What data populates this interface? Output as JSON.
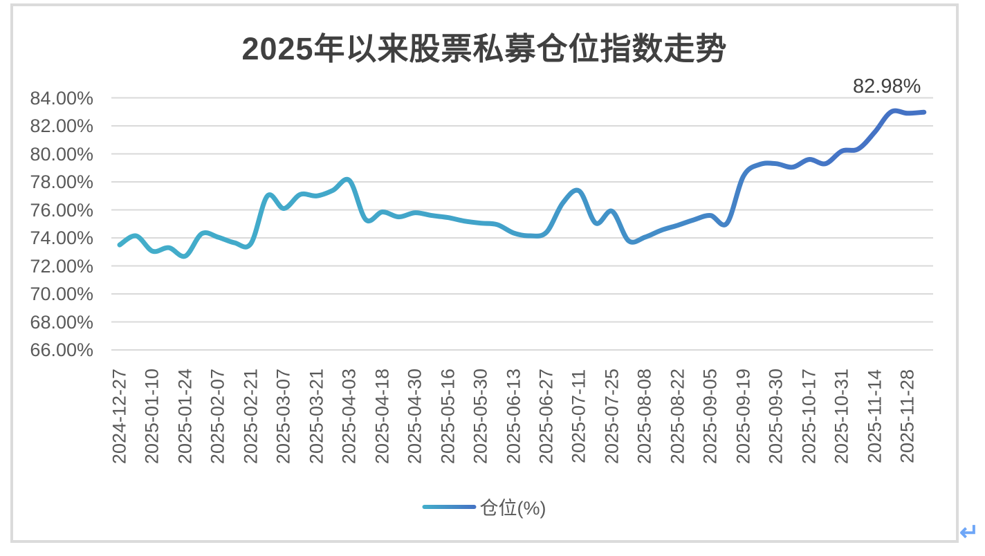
{
  "page": {
    "return_mark": "↵"
  },
  "chart_data": {
    "type": "line",
    "title": "2025年以来股票私募仓位指数走势",
    "legend": "仓位(%)",
    "legend_position": "bottom",
    "end_label": "82.98%",
    "xlabel": "",
    "ylabel": "",
    "ylim": [
      66,
      84
    ],
    "grid": true,
    "y_ticks": [
      "84.00%",
      "82.00%",
      "80.00%",
      "78.00%",
      "76.00%",
      "74.00%",
      "72.00%",
      "70.00%",
      "68.00%",
      "66.00%"
    ],
    "x_labels": [
      "2024-12-27",
      "2025-01-10",
      "2025-01-24",
      "2025-02-07",
      "2025-02-21",
      "2025-03-07",
      "2025-03-21",
      "2025-04-03",
      "2025-04-18",
      "2025-04-30",
      "2025-05-16",
      "2025-05-30",
      "2025-06-13",
      "2025-06-27",
      "2025-07-11",
      "2025-07-25",
      "2025-08-08",
      "2025-08-22",
      "2025-09-05",
      "2025-09-19",
      "2025-09-30",
      "2025-10-17",
      "2025-10-31",
      "2025-11-14",
      "2025-11-28"
    ],
    "x_labels_note": "labels shown every 2nd data point; series is weekly",
    "series": [
      {
        "name": "仓位(%)",
        "values": [
          73.5,
          74.15,
          73.05,
          73.3,
          72.7,
          74.3,
          74.05,
          73.65,
          73.6,
          77.0,
          76.1,
          77.1,
          77.0,
          77.4,
          78.1,
          75.3,
          75.85,
          75.5,
          75.8,
          75.6,
          75.45,
          75.2,
          75.05,
          74.95,
          74.35,
          74.15,
          74.4,
          76.5,
          77.35,
          75.05,
          75.9,
          73.8,
          74.05,
          74.55,
          74.9,
          75.3,
          75.6,
          75.05,
          78.4,
          79.25,
          79.3,
          79.05,
          79.6,
          79.3,
          80.2,
          80.35,
          81.55,
          83.0,
          82.9,
          82.98
        ]
      }
    ],
    "colors": {
      "line_gradient_start": "#43aeca",
      "line_gradient_end": "#4472c4",
      "gridline": "#d9d9d9",
      "tick_text": "#595959",
      "title_text": "#404040",
      "data_label_text": "#404040",
      "frame_border": "#dbdbdb",
      "return_mark": "#6ea6f7"
    }
  }
}
